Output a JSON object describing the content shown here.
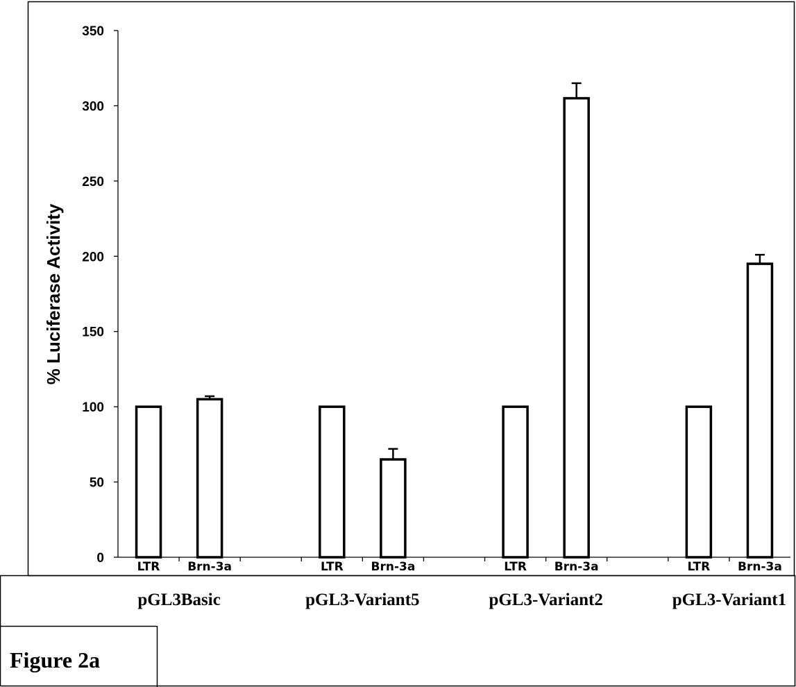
{
  "figure_label": "Figure 2a",
  "chart_data": {
    "type": "bar",
    "ylabel": "% Luciferase Activity",
    "ylim": [
      0,
      350
    ],
    "yticks": [
      0,
      50,
      100,
      150,
      200,
      250,
      300,
      350
    ],
    "grid": false,
    "groups": [
      {
        "label": "pGL3Basic",
        "bars": [
          {
            "category": "LTR",
            "value": 100,
            "error": 0
          },
          {
            "category": "Brn-3a",
            "value": 105,
            "error": 2
          }
        ]
      },
      {
        "label": "pGL3-Variant5",
        "bars": [
          {
            "category": "LTR",
            "value": 100,
            "error": 0
          },
          {
            "category": "Brn-3a",
            "value": 65,
            "error": 7
          }
        ]
      },
      {
        "label": "pGL3-Variant2",
        "bars": [
          {
            "category": "LTR",
            "value": 100,
            "error": 0
          },
          {
            "category": "Brn-3a",
            "value": 305,
            "error": 10
          }
        ]
      },
      {
        "label": "pGL3-Variant1",
        "bars": [
          {
            "category": "LTR",
            "value": 100,
            "error": 0
          },
          {
            "category": "Brn-3a",
            "value": 195,
            "error": 6
          }
        ]
      }
    ]
  }
}
